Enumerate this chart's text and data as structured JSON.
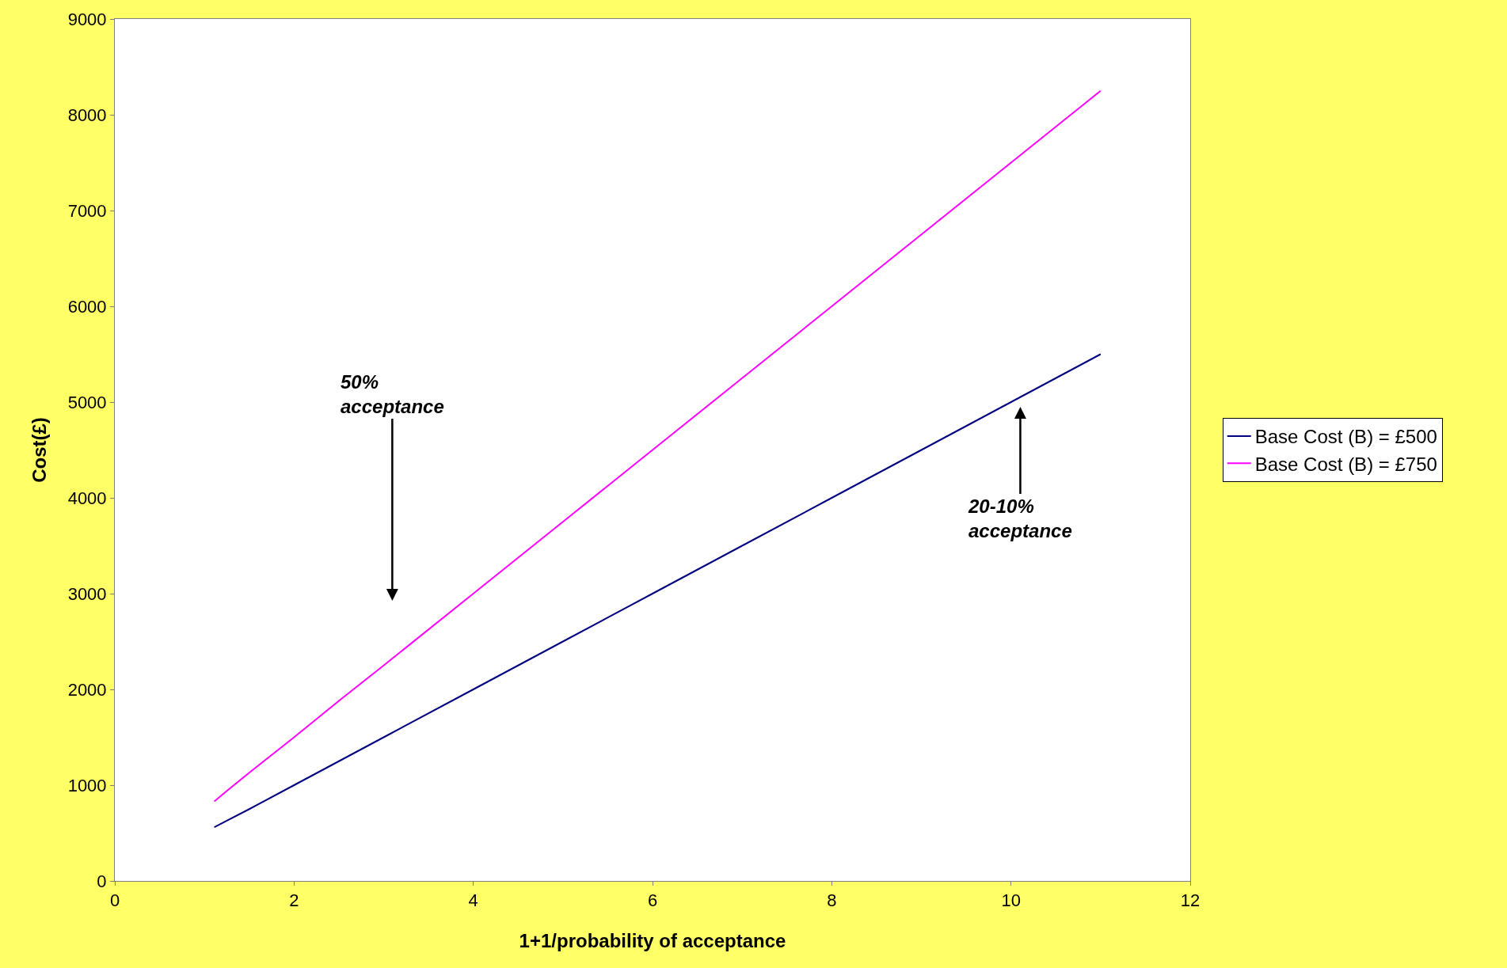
{
  "chart_data": {
    "type": "line",
    "xlabel": "1+1/probability of acceptance",
    "ylabel": "Cost(£)",
    "x": [
      1.11,
      1.25,
      1.5,
      2,
      2.5,
      3,
      4,
      5,
      6,
      7,
      8,
      9,
      10,
      11
    ],
    "series": [
      {
        "name": "Base Cost (B) = £500",
        "color": "#000080",
        "values": [
          560,
          630,
          750,
          1000,
          1250,
          1500,
          2000,
          2500,
          3000,
          3500,
          4000,
          4500,
          5000,
          5500
        ]
      },
      {
        "name": "Base Cost (B) = £750",
        "color": "#ff00ff",
        "values": [
          830,
          940,
          1130,
          1500,
          1880,
          2250,
          3000,
          3750,
          4500,
          5250,
          6000,
          6750,
          7500,
          8250
        ]
      }
    ],
    "annotations": [
      "50%\nacceptance",
      "20-10%\nacceptance"
    ],
    "xlim": [
      0,
      12
    ],
    "xticks": [
      0,
      2,
      4,
      6,
      8,
      10,
      12
    ],
    "ylim": [
      0,
      9000
    ],
    "yticks": [
      0,
      1000,
      2000,
      3000,
      4000,
      5000,
      6000,
      7000,
      8000,
      9000
    ],
    "legend": "right",
    "marker": "none",
    "line_style": "solid"
  }
}
